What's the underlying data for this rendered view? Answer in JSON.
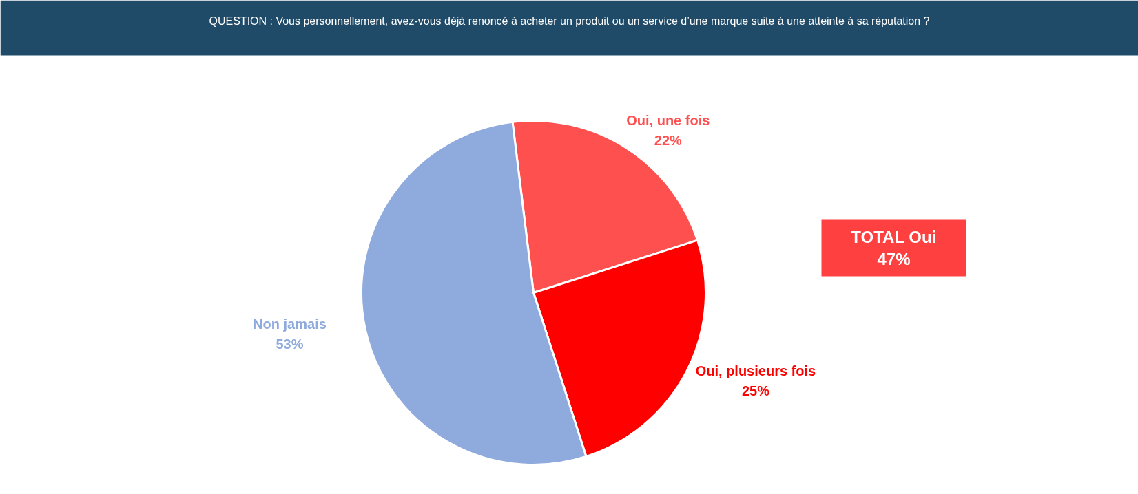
{
  "chart_data": {
    "type": "pie",
    "title": "QUESTION : Vous personnellement, avez-vous déjà renoncé à acheter un produit ou un service d’une marque suite à une atteinte à sa réputation ?",
    "categories": [
      "Oui, une fois",
      "Oui, plusieurs fois",
      "Non jamais"
    ],
    "values": [
      22,
      25,
      53
    ],
    "colors": [
      "#ff5050",
      "#ff0000",
      "#8faadc"
    ],
    "value_labels": [
      "22%",
      "25%",
      "53%"
    ],
    "annotations": [
      "TOTAL Oui\n47%"
    ]
  }
}
